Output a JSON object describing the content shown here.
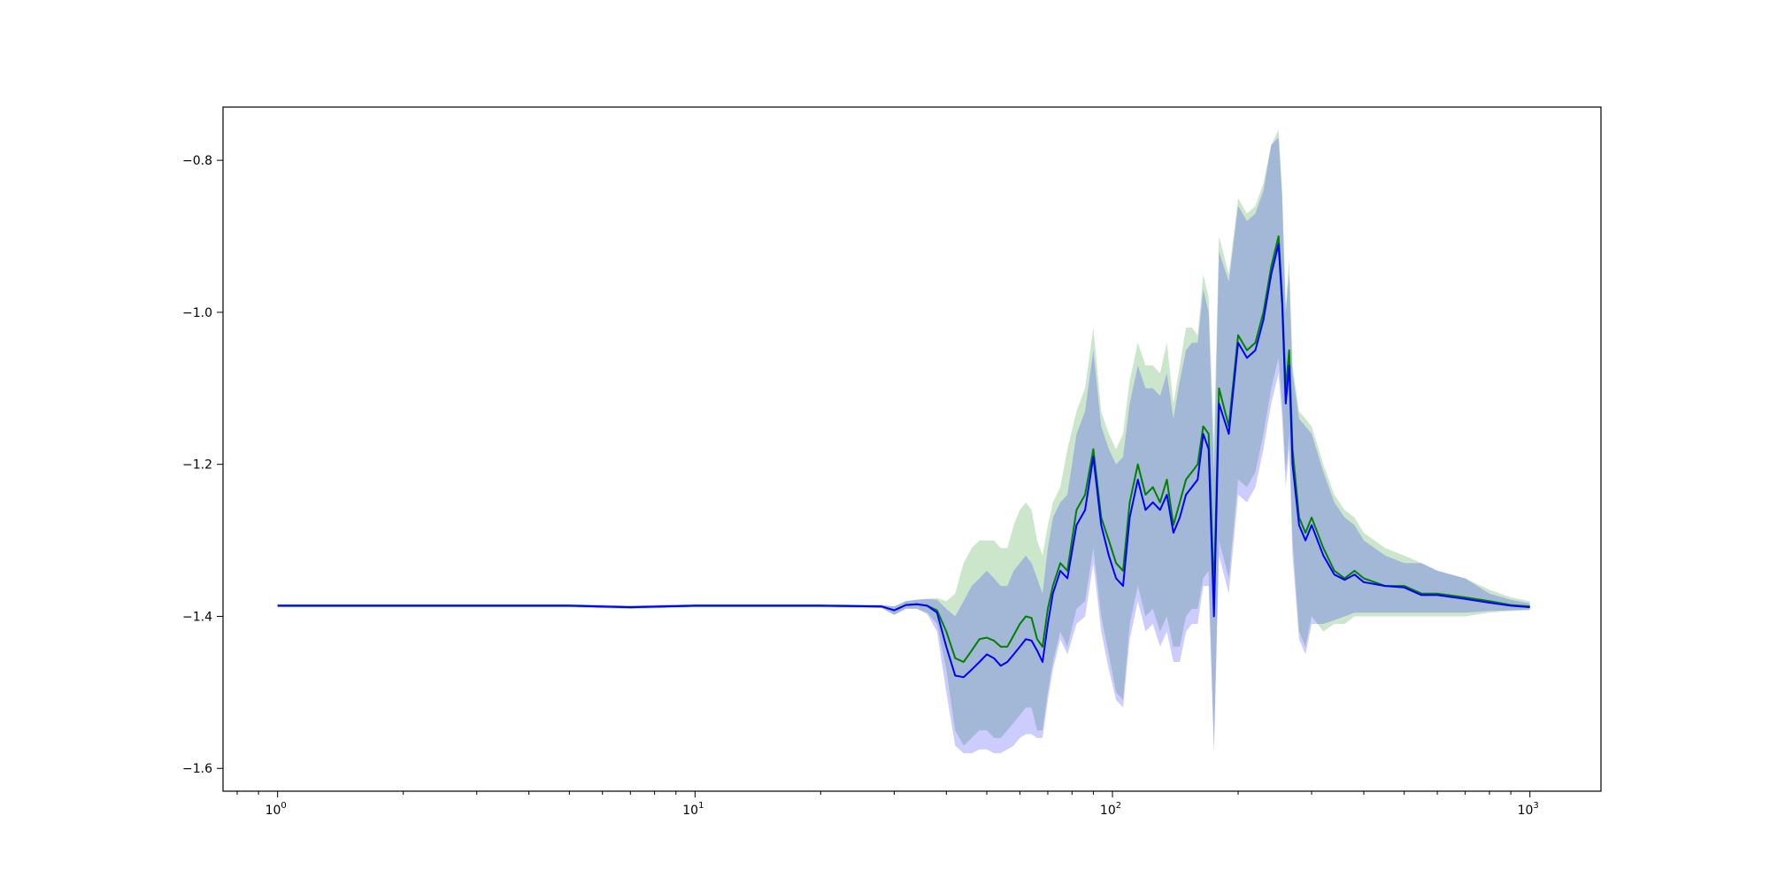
{
  "chart_data": {
    "type": "line",
    "title": "",
    "xlabel": "",
    "ylabel": "",
    "xscale": "log",
    "xlim": [
      0.74,
      1480
    ],
    "ylim": [
      -1.63,
      -0.73
    ],
    "grid": false,
    "legend": "none",
    "x_ticks": [
      {
        "value": 1,
        "base": "10",
        "exp": "0"
      },
      {
        "value": 10,
        "base": "10",
        "exp": "1"
      },
      {
        "value": 100,
        "base": "10",
        "exp": "2"
      },
      {
        "value": 1000,
        "base": "10",
        "exp": "3"
      }
    ],
    "y_ticks": [
      {
        "value": -1.6,
        "label": "−1.6"
      },
      {
        "value": -1.4,
        "label": "−1.4"
      },
      {
        "value": -1.2,
        "label": "−1.2"
      },
      {
        "value": -1.0,
        "label": "−1.0"
      },
      {
        "value": -0.8,
        "label": "−0.8"
      }
    ],
    "x": [
      1,
      2,
      5,
      7,
      10,
      15,
      20,
      28,
      30,
      32,
      34,
      36,
      38,
      40,
      42,
      44,
      46,
      48,
      50,
      52,
      54,
      56,
      58,
      60,
      62,
      64,
      66,
      68,
      70,
      72,
      75,
      78,
      82,
      86,
      90,
      94,
      98,
      102,
      106,
      110,
      115,
      120,
      125,
      130,
      135,
      140,
      145,
      150,
      155,
      160,
      165,
      170,
      175,
      180,
      190,
      200,
      210,
      220,
      230,
      240,
      250,
      255,
      260,
      265,
      270,
      280,
      290,
      300,
      320,
      340,
      360,
      380,
      400,
      450,
      500,
      550,
      600,
      700,
      800,
      900,
      1000
    ],
    "series": [
      {
        "color": "#008000",
        "band_color": "#008000",
        "mean": [
          -1.386,
          -1.386,
          -1.386,
          -1.388,
          -1.386,
          -1.386,
          -1.386,
          -1.387,
          -1.392,
          -1.385,
          -1.384,
          -1.386,
          -1.392,
          -1.42,
          -1.455,
          -1.46,
          -1.445,
          -1.43,
          -1.428,
          -1.432,
          -1.44,
          -1.44,
          -1.425,
          -1.41,
          -1.4,
          -1.402,
          -1.43,
          -1.44,
          -1.39,
          -1.36,
          -1.33,
          -1.34,
          -1.26,
          -1.24,
          -1.18,
          -1.27,
          -1.3,
          -1.33,
          -1.34,
          -1.25,
          -1.2,
          -1.24,
          -1.23,
          -1.25,
          -1.22,
          -1.28,
          -1.25,
          -1.22,
          -1.21,
          -1.2,
          -1.15,
          -1.16,
          -1.37,
          -1.1,
          -1.15,
          -1.03,
          -1.05,
          -1.04,
          -1.0,
          -0.94,
          -0.9,
          -0.98,
          -1.1,
          -1.05,
          -1.18,
          -1.27,
          -1.29,
          -1.27,
          -1.31,
          -1.34,
          -1.35,
          -1.34,
          -1.35,
          -1.36,
          -1.36,
          -1.37,
          -1.37,
          -1.375,
          -1.38,
          -1.385,
          -1.387
        ],
        "lower": [
          -1.388,
          -1.388,
          -1.388,
          -1.39,
          -1.388,
          -1.388,
          -1.388,
          -1.389,
          -1.398,
          -1.39,
          -1.39,
          -1.395,
          -1.41,
          -1.47,
          -1.55,
          -1.57,
          -1.56,
          -1.55,
          -1.55,
          -1.56,
          -1.56,
          -1.55,
          -1.54,
          -1.53,
          -1.52,
          -1.52,
          -1.55,
          -1.55,
          -1.5,
          -1.46,
          -1.42,
          -1.44,
          -1.39,
          -1.38,
          -1.31,
          -1.4,
          -1.45,
          -1.5,
          -1.51,
          -1.41,
          -1.36,
          -1.4,
          -1.39,
          -1.42,
          -1.4,
          -1.44,
          -1.44,
          -1.4,
          -1.39,
          -1.39,
          -1.35,
          -1.34,
          -1.57,
          -1.3,
          -1.35,
          -1.22,
          -1.23,
          -1.21,
          -1.16,
          -1.1,
          -1.06,
          -1.12,
          -1.21,
          -1.16,
          -1.3,
          -1.42,
          -1.44,
          -1.4,
          -1.42,
          -1.41,
          -1.41,
          -1.4,
          -1.4,
          -1.4,
          -1.4,
          -1.4,
          -1.4,
          -1.4,
          -1.395,
          -1.393,
          -1.392
        ],
        "upper": [
          -1.384,
          -1.384,
          -1.384,
          -1.386,
          -1.384,
          -1.384,
          -1.384,
          -1.385,
          -1.387,
          -1.38,
          -1.378,
          -1.377,
          -1.376,
          -1.38,
          -1.37,
          -1.33,
          -1.31,
          -1.3,
          -1.3,
          -1.3,
          -1.31,
          -1.31,
          -1.28,
          -1.26,
          -1.25,
          -1.26,
          -1.3,
          -1.32,
          -1.28,
          -1.25,
          -1.23,
          -1.18,
          -1.13,
          -1.1,
          -1.02,
          -1.13,
          -1.16,
          -1.18,
          -1.16,
          -1.09,
          -1.04,
          -1.07,
          -1.07,
          -1.08,
          -1.04,
          -1.12,
          -1.07,
          -1.02,
          -1.02,
          -1.03,
          -0.95,
          -0.98,
          -1.17,
          -0.9,
          -0.95,
          -0.85,
          -0.87,
          -0.86,
          -0.83,
          -0.78,
          -0.76,
          -0.84,
          -0.99,
          -0.93,
          -1.07,
          -1.13,
          -1.14,
          -1.15,
          -1.2,
          -1.24,
          -1.26,
          -1.27,
          -1.29,
          -1.31,
          -1.32,
          -1.33,
          -1.34,
          -1.35,
          -1.365,
          -1.375,
          -1.38
        ]
      },
      {
        "color": "#0000ff",
        "band_color": "#0000ff",
        "mean": [
          -1.386,
          -1.386,
          -1.386,
          -1.388,
          -1.386,
          -1.386,
          -1.386,
          -1.387,
          -1.392,
          -1.385,
          -1.384,
          -1.386,
          -1.395,
          -1.44,
          -1.478,
          -1.48,
          -1.47,
          -1.46,
          -1.45,
          -1.455,
          -1.465,
          -1.46,
          -1.45,
          -1.44,
          -1.43,
          -1.432,
          -1.445,
          -1.46,
          -1.41,
          -1.37,
          -1.34,
          -1.35,
          -1.28,
          -1.26,
          -1.19,
          -1.28,
          -1.32,
          -1.35,
          -1.36,
          -1.27,
          -1.22,
          -1.26,
          -1.25,
          -1.26,
          -1.24,
          -1.29,
          -1.27,
          -1.24,
          -1.23,
          -1.22,
          -1.16,
          -1.18,
          -1.4,
          -1.12,
          -1.16,
          -1.04,
          -1.06,
          -1.05,
          -1.01,
          -0.95,
          -0.91,
          -0.99,
          -1.12,
          -1.07,
          -1.2,
          -1.28,
          -1.3,
          -1.28,
          -1.32,
          -1.345,
          -1.352,
          -1.345,
          -1.355,
          -1.36,
          -1.362,
          -1.372,
          -1.372,
          -1.377,
          -1.382,
          -1.386,
          -1.388
        ],
        "lower": [
          -1.388,
          -1.388,
          -1.388,
          -1.39,
          -1.388,
          -1.388,
          -1.388,
          -1.389,
          -1.398,
          -1.39,
          -1.39,
          -1.397,
          -1.42,
          -1.5,
          -1.57,
          -1.58,
          -1.58,
          -1.575,
          -1.575,
          -1.58,
          -1.58,
          -1.575,
          -1.57,
          -1.56,
          -1.555,
          -1.555,
          -1.56,
          -1.56,
          -1.51,
          -1.47,
          -1.43,
          -1.45,
          -1.41,
          -1.4,
          -1.33,
          -1.42,
          -1.47,
          -1.51,
          -1.52,
          -1.43,
          -1.38,
          -1.42,
          -1.41,
          -1.44,
          -1.42,
          -1.46,
          -1.46,
          -1.42,
          -1.41,
          -1.41,
          -1.36,
          -1.36,
          -1.58,
          -1.32,
          -1.37,
          -1.24,
          -1.25,
          -1.23,
          -1.18,
          -1.12,
          -1.08,
          -1.14,
          -1.23,
          -1.18,
          -1.32,
          -1.43,
          -1.45,
          -1.41,
          -1.41,
          -1.405,
          -1.4,
          -1.395,
          -1.395,
          -1.395,
          -1.395,
          -1.395,
          -1.395,
          -1.395,
          -1.393,
          -1.392,
          -1.391
        ],
        "upper": [
          -1.384,
          -1.384,
          -1.384,
          -1.386,
          -1.384,
          -1.384,
          -1.384,
          -1.385,
          -1.387,
          -1.38,
          -1.378,
          -1.377,
          -1.378,
          -1.39,
          -1.4,
          -1.38,
          -1.36,
          -1.35,
          -1.34,
          -1.35,
          -1.36,
          -1.36,
          -1.34,
          -1.33,
          -1.32,
          -1.33,
          -1.35,
          -1.37,
          -1.31,
          -1.27,
          -1.25,
          -1.24,
          -1.16,
          -1.13,
          -1.05,
          -1.15,
          -1.18,
          -1.2,
          -1.19,
          -1.12,
          -1.07,
          -1.1,
          -1.1,
          -1.11,
          -1.08,
          -1.14,
          -1.09,
          -1.05,
          -1.04,
          -1.04,
          -0.97,
          -1.0,
          -1.21,
          -0.92,
          -0.96,
          -0.86,
          -0.88,
          -0.87,
          -0.84,
          -0.78,
          -0.77,
          -0.85,
          -1.0,
          -0.95,
          -1.08,
          -1.14,
          -1.15,
          -1.16,
          -1.21,
          -1.25,
          -1.27,
          -1.28,
          -1.3,
          -1.32,
          -1.33,
          -1.33,
          -1.34,
          -1.35,
          -1.37,
          -1.378,
          -1.383
        ]
      }
    ]
  }
}
